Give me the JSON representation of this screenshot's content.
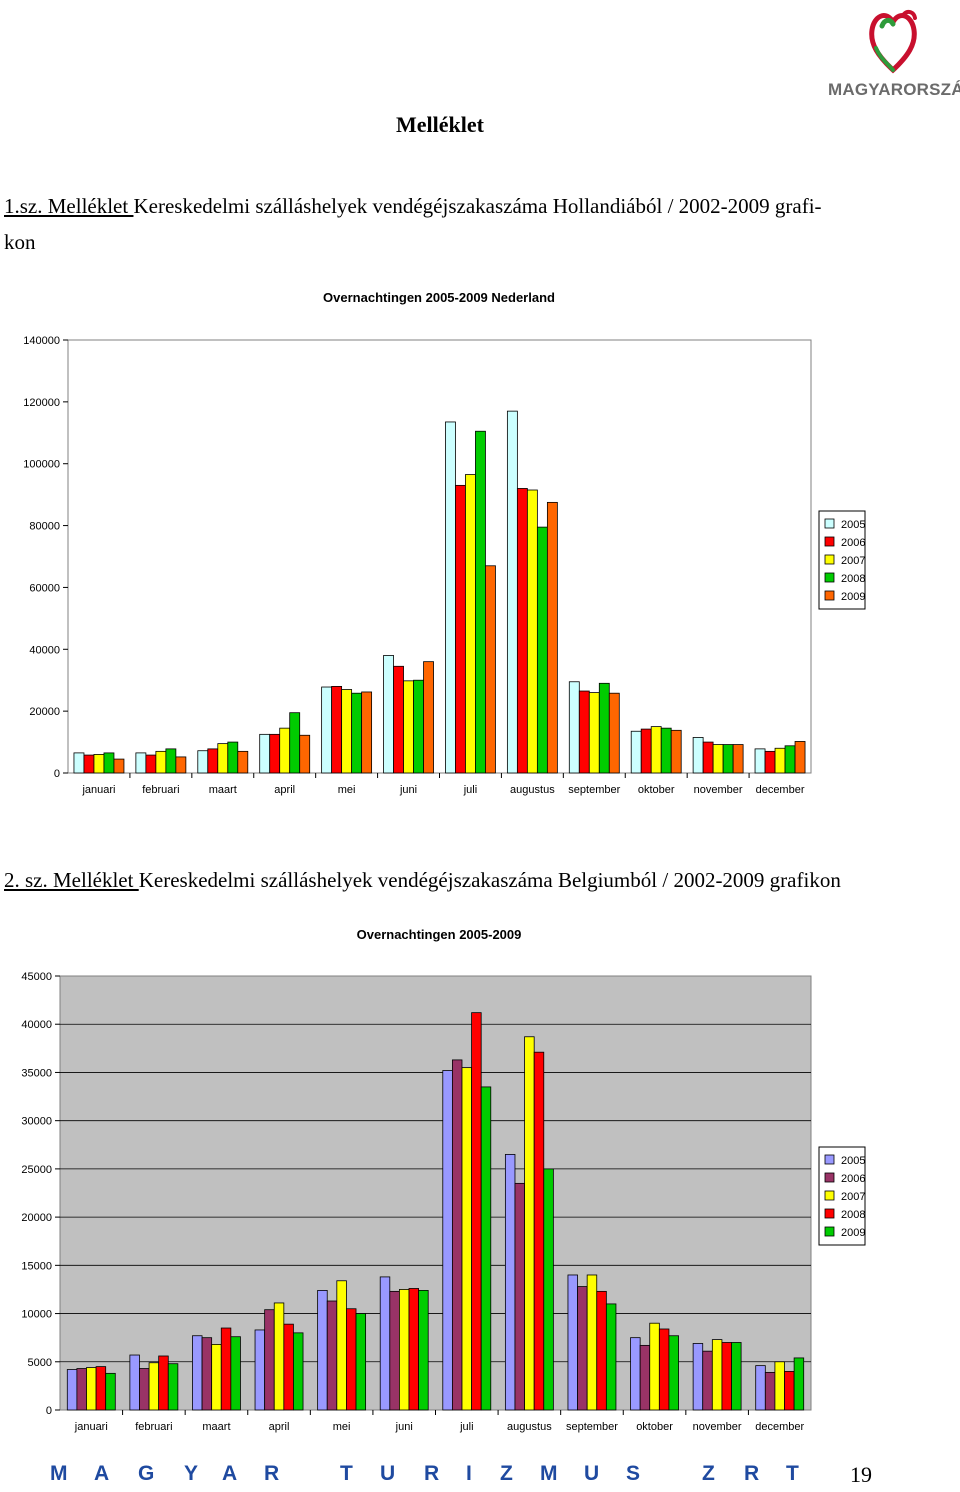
{
  "header": {
    "logo_text": "MAGYARORSZÁG",
    "title": "Melléklet"
  },
  "section1": {
    "caption_prefix": "1.sz. Melléklet ",
    "caption_rest": "Kereskedelmi szálláshelyek vendégéjszakaszáma Hollandiából / 2002-2009 grafi-",
    "caption_line2": "kon"
  },
  "section2": {
    "caption_prefix": "2. sz. Melléklet ",
    "caption_rest": "Kereskedelmi szálláshelyek vendégéjszakaszáma Belgiumból / 2002-2009 grafikon"
  },
  "chart_data": [
    {
      "type": "bar",
      "title": "Overnachtingen 2005-2009 Nederland",
      "categories": [
        "januari",
        "februari",
        "maart",
        "april",
        "mei",
        "juni",
        "juli",
        "augustus",
        "september",
        "oktober",
        "november",
        "december"
      ],
      "yticks": [
        "0",
        "20000",
        "40000",
        "60000",
        "80000",
        "100000",
        "120000",
        "140000"
      ],
      "ylim": [
        0,
        140000
      ],
      "grid": false,
      "legend_position": "right",
      "series": [
        {
          "name": "2005",
          "color": "#ccffff",
          "values": [
            6500,
            6500,
            7200,
            12500,
            27800,
            38000,
            113500,
            117000,
            29500,
            13500,
            11500,
            7800
          ]
        },
        {
          "name": "2006",
          "color": "#ff0000",
          "values": [
            5800,
            5800,
            7800,
            12500,
            28000,
            34500,
            93000,
            92000,
            26500,
            14200,
            10000,
            7000
          ]
        },
        {
          "name": "2007",
          "color": "#ffff00",
          "values": [
            6000,
            7000,
            9500,
            14500,
            27000,
            29800,
            96500,
            91500,
            26000,
            15000,
            9200,
            8000
          ]
        },
        {
          "name": "2008",
          "color": "#00cc00",
          "values": [
            6500,
            7800,
            10000,
            19500,
            25800,
            30000,
            110500,
            79500,
            29000,
            14500,
            9200,
            8800
          ]
        },
        {
          "name": "2009",
          "color": "#ff6600",
          "values": [
            4500,
            5200,
            7000,
            12200,
            26200,
            36000,
            67000,
            87500,
            25800,
            13800,
            9200,
            10200
          ]
        }
      ]
    },
    {
      "type": "bar",
      "title": "Overnachtingen 2005-2009",
      "categories": [
        "januari",
        "februari",
        "maart",
        "april",
        "mei",
        "juni",
        "juli",
        "augustus",
        "september",
        "oktober",
        "november",
        "december"
      ],
      "yticks": [
        "0",
        "5000",
        "10000",
        "15000",
        "20000",
        "25000",
        "30000",
        "35000",
        "40000",
        "45000"
      ],
      "ylim": [
        0,
        45000
      ],
      "grid": true,
      "legend_position": "right",
      "series": [
        {
          "name": "2005",
          "color": "#9999ff",
          "values": [
            4200,
            5700,
            7700,
            8300,
            12400,
            13800,
            35200,
            26500,
            14000,
            7500,
            6900,
            4600
          ]
        },
        {
          "name": "2006",
          "color": "#993366",
          "values": [
            4300,
            4300,
            7500,
            10400,
            11300,
            12300,
            36300,
            23500,
            12800,
            6700,
            6100,
            3900
          ]
        },
        {
          "name": "2007",
          "color": "#ffff00",
          "values": [
            4400,
            4900,
            6800,
            11100,
            13400,
            12500,
            35500,
            38700,
            14000,
            9000,
            7300,
            5000
          ]
        },
        {
          "name": "2008",
          "color": "#ff0000",
          "values": [
            4500,
            5600,
            8500,
            8900,
            10500,
            12600,
            41200,
            37100,
            12300,
            8400,
            7000,
            4000
          ]
        },
        {
          "name": "2009",
          "color": "#00cc00",
          "values": [
            3800,
            4800,
            7600,
            8000,
            10000,
            12400,
            33500,
            25000,
            11000,
            7700,
            7000,
            5400
          ]
        }
      ]
    }
  ],
  "footer": {
    "brand_letters": [
      "M",
      "A",
      "G",
      "Y",
      "A",
      "R",
      "T",
      "U",
      "R",
      "I",
      "Z",
      "M",
      "U",
      "S",
      "Z",
      "R",
      "T"
    ],
    "page_number": "19"
  }
}
